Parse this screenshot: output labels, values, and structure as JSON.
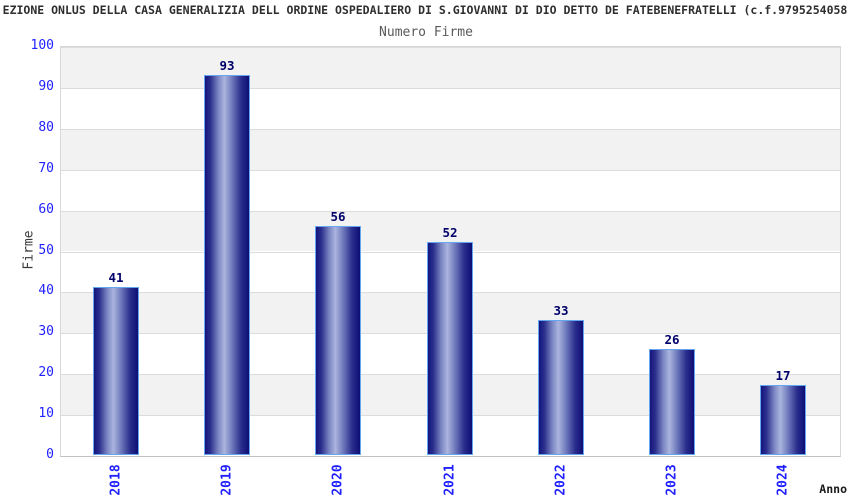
{
  "chart_data": {
    "type": "bar",
    "title": "EZIONE ONLUS DELLA CASA GENERALIZIA DELL ORDINE OSPEDALIERO DI S.GIOVANNI DI DIO DETTO DE FATEBENEFRATELLI (c.f.9795254058",
    "subtitle": "Numero Firme",
    "xlabel": "Anno",
    "ylabel": "Firme",
    "categories": [
      "2018",
      "2019",
      "2020",
      "2021",
      "2022",
      "2023",
      "2024"
    ],
    "values": [
      41,
      93,
      56,
      52,
      33,
      26,
      17
    ],
    "ylim": [
      0,
      100
    ],
    "y_ticks": [
      0,
      10,
      20,
      30,
      40,
      50,
      60,
      70,
      80,
      90,
      100
    ],
    "grid": "horizontal gridlines with alternating shaded decade bands",
    "legend_position": "none",
    "colors": {
      "tick_label_blue": "#1f1fff",
      "value_label_navy": "#00006b",
      "bar_gradient_edge": "#15157d",
      "bar_gradient_mid": "#7a85c2",
      "bar_gradient_highlight": "#abb5de",
      "bar_gradient_right": "#0e0e74",
      "bar_border": "#64a7f0",
      "band_shade": "#f2f2f2",
      "gridline": "#dcdcdc"
    }
  }
}
